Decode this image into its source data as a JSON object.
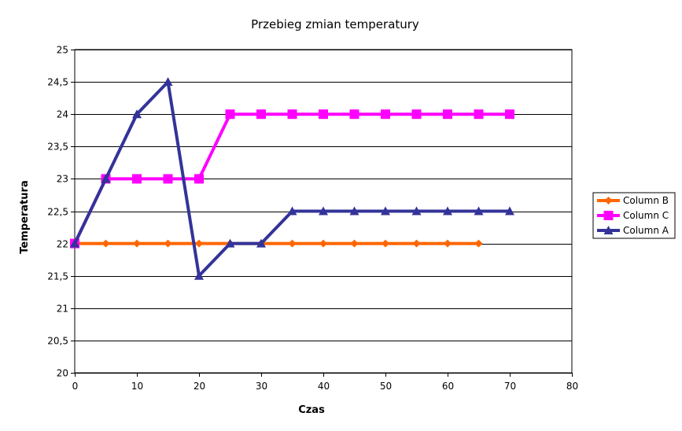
{
  "chart_data": {
    "type": "line",
    "title": "Przebieg zmian temperatury",
    "xlabel": "Czas",
    "ylabel": "Temperatura",
    "xlim": [
      0,
      80
    ],
    "ylim": [
      20,
      25
    ],
    "x_ticks": [
      0,
      10,
      20,
      30,
      40,
      50,
      60,
      70,
      80
    ],
    "y_ticks": [
      20,
      20.5,
      21,
      21.5,
      22,
      22.5,
      23,
      23.5,
      24,
      24.5,
      25
    ],
    "x_tick_labels": [
      "0",
      "10",
      "20",
      "30",
      "40",
      "50",
      "60",
      "70",
      "80"
    ],
    "y_tick_labels": [
      "20",
      "20,5",
      "21",
      "21,5",
      "22",
      "22,5",
      "23",
      "23,5",
      "24",
      "24,5",
      "25"
    ],
    "grid": "horizontal",
    "legend_position": "right",
    "series": [
      {
        "name": "Column B",
        "color": "#ff6600",
        "marker": "diamond",
        "x": [
          0,
          5,
          10,
          15,
          20,
          25,
          30,
          35,
          40,
          45,
          50,
          55,
          60,
          65
        ],
        "y": [
          22,
          22,
          22,
          22,
          22,
          22,
          22,
          22,
          22,
          22,
          22,
          22,
          22,
          22
        ]
      },
      {
        "name": "Column C",
        "color": "#ff00ff",
        "marker": "square",
        "x": [
          0,
          5,
          10,
          15,
          20,
          25,
          30,
          35,
          40,
          45,
          50,
          55,
          60,
          65,
          70
        ],
        "y": [
          22,
          23,
          23,
          23,
          23,
          24,
          24,
          24,
          24,
          24,
          24,
          24,
          24,
          24,
          24
        ]
      },
      {
        "name": "Column A",
        "color": "#333399",
        "marker": "triangle",
        "x": [
          0,
          5,
          10,
          15,
          20,
          25,
          30,
          35,
          40,
          45,
          50,
          55,
          60,
          65,
          70
        ],
        "y": [
          22,
          23,
          24,
          24.5,
          21.5,
          22,
          22,
          22.5,
          22.5,
          22.5,
          22.5,
          22.5,
          22.5,
          22.5,
          22.5
        ]
      }
    ]
  }
}
